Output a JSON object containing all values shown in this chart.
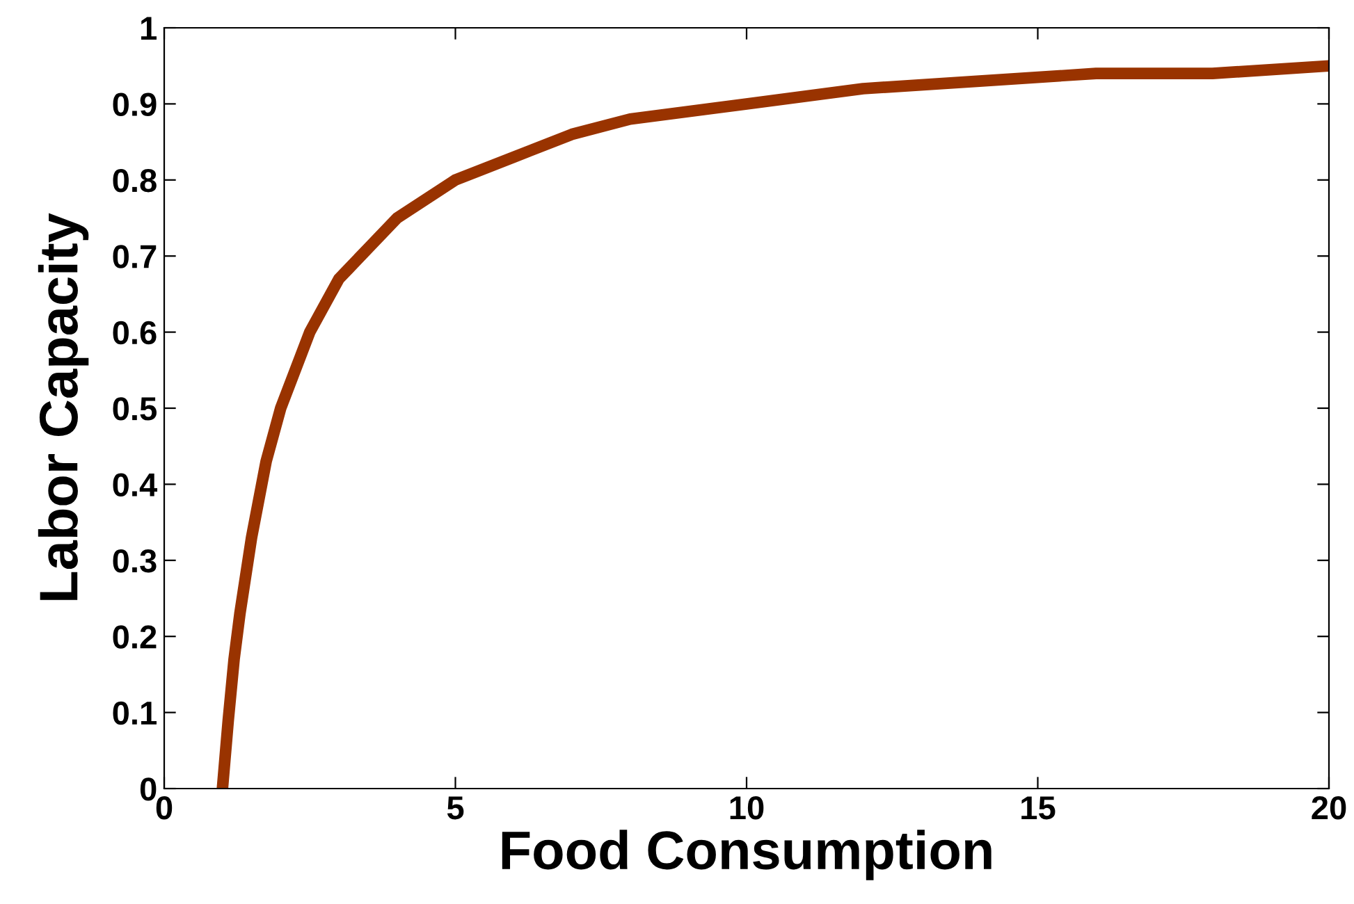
{
  "chart_data": {
    "type": "line",
    "xlabel": "Food Consumption",
    "ylabel": "Labor Capacity",
    "x": [
      1,
      1.1,
      1.2,
      1.3,
      1.5,
      1.75,
      2,
      2.5,
      3,
      3.5,
      4,
      5,
      6,
      7,
      8,
      10,
      12,
      14,
      16,
      18,
      20
    ],
    "series": [
      {
        "color": "#993300",
        "values": [
          0,
          0.09,
          0.17,
          0.23,
          0.33,
          0.43,
          0.5,
          0.6,
          0.67,
          0.71,
          0.75,
          0.8,
          0.83,
          0.86,
          0.88,
          0.9,
          0.92,
          0.93,
          0.94,
          0.94,
          0.95
        ]
      }
    ],
    "xlim": [
      0,
      20
    ],
    "ylim": [
      0,
      1
    ],
    "xticks": [
      0,
      5,
      10,
      15,
      20
    ],
    "yticks": [
      0,
      0.1,
      0.2,
      0.3,
      0.4,
      0.5,
      0.6,
      0.7,
      0.8,
      0.9,
      1
    ],
    "grid": false,
    "legend": false,
    "marker": "none",
    "line_style": "solid"
  }
}
